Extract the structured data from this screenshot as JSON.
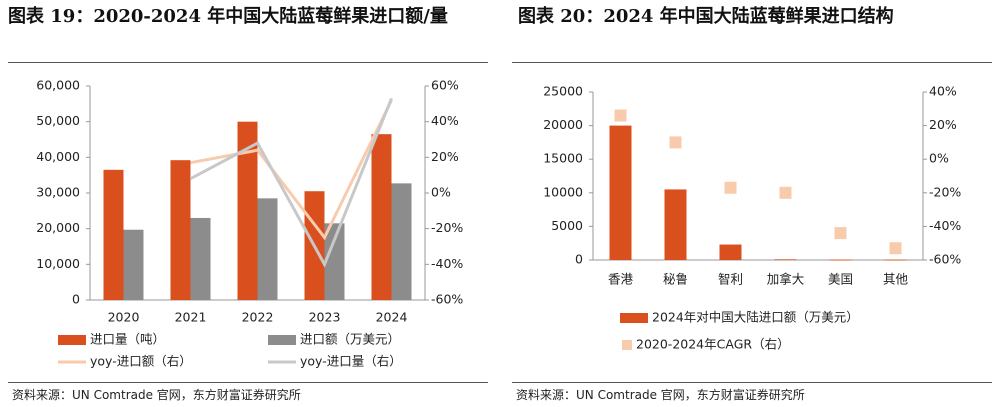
{
  "chart_data": [
    {
      "type": "bar",
      "title": "图表 19：2020-2024 年中国大陆蓝莓鲜果进口额/量",
      "source": "资料来源：UN Comtrade 官网，东方财富证券研究所",
      "categories": [
        "2020",
        "2021",
        "2022",
        "2023",
        "2024"
      ],
      "series": [
        {
          "name": "进口量（吨）",
          "type": "bar",
          "color": "#d9501e",
          "values": [
            36500,
            39200,
            50000,
            30500,
            46500
          ]
        },
        {
          "name": "进口额（万美元）",
          "type": "bar",
          "color": "#8c8c8c",
          "values": [
            19700,
            23000,
            28500,
            21500,
            32700
          ]
        },
        {
          "name": "yoy-进口额（右）",
          "type": "line",
          "axis": "y2",
          "color": "#f8cbad",
          "values": [
            null,
            17,
            24,
            -25,
            52
          ]
        },
        {
          "name": "yoy-进口量（右）",
          "type": "line",
          "axis": "y2",
          "color": "#c8c8c8",
          "values": [
            null,
            8,
            28,
            -40,
            53
          ]
        }
      ],
      "ylim": [
        0,
        60000
      ],
      "yticks": [
        0,
        {
          "value": 10000,
          "label": "10,000"
        },
        {
          "value": 20000,
          "label": "20,000"
        },
        {
          "value": 30000,
          "label": "30,000"
        },
        {
          "value": 40000,
          "label": "40,000"
        },
        {
          "value": 50000,
          "label": "50,000"
        },
        {
          "value": 60000,
          "label": "60,000"
        }
      ],
      "y2lim": [
        -60,
        60
      ],
      "y2ticks": [
        {
          "value": -60,
          "label": "-60%"
        },
        {
          "value": -40,
          "label": "-40%"
        },
        {
          "value": -20,
          "label": "-20%"
        },
        {
          "value": 0,
          "label": "0%"
        },
        {
          "value": 20,
          "label": "20%"
        },
        {
          "value": 40,
          "label": "40%"
        },
        {
          "value": 60,
          "label": "60%"
        }
      ],
      "grid": false,
      "legend": "bottom"
    },
    {
      "type": "bar",
      "title": "图表 20：2024 年中国大陆蓝莓鲜果进口结构",
      "source": "资料来源：UN Comtrade 官网，东方财富证券研究所",
      "categories": [
        "香港",
        "秘鲁",
        "智利",
        "加拿大",
        "美国",
        "其他"
      ],
      "series": [
        {
          "name": "2024年对中国大陆进口额（万美元）",
          "type": "bar",
          "color": "#d9501e",
          "values": [
            20000,
            10500,
            2300,
            100,
            50,
            50
          ]
        },
        {
          "name": "2020-2024年CAGR（右）",
          "type": "scatter",
          "axis": "y2",
          "color": "#f8cbad",
          "values": [
            26,
            10,
            -17,
            -20,
            -44,
            -53
          ]
        }
      ],
      "ylim": [
        0,
        25000
      ],
      "yticks": [
        0,
        5000,
        10000,
        15000,
        20000,
        25000
      ],
      "y2lim": [
        -60,
        40
      ],
      "y2ticks": [
        {
          "value": -60,
          "label": "-60%"
        },
        {
          "value": -40,
          "label": "-40%"
        },
        {
          "value": -20,
          "label": "-20%"
        },
        {
          "value": 0,
          "label": "0%"
        },
        {
          "value": 20,
          "label": "20%"
        },
        {
          "value": 40,
          "label": "40%"
        }
      ],
      "grid": false,
      "legend": "bottom"
    }
  ]
}
